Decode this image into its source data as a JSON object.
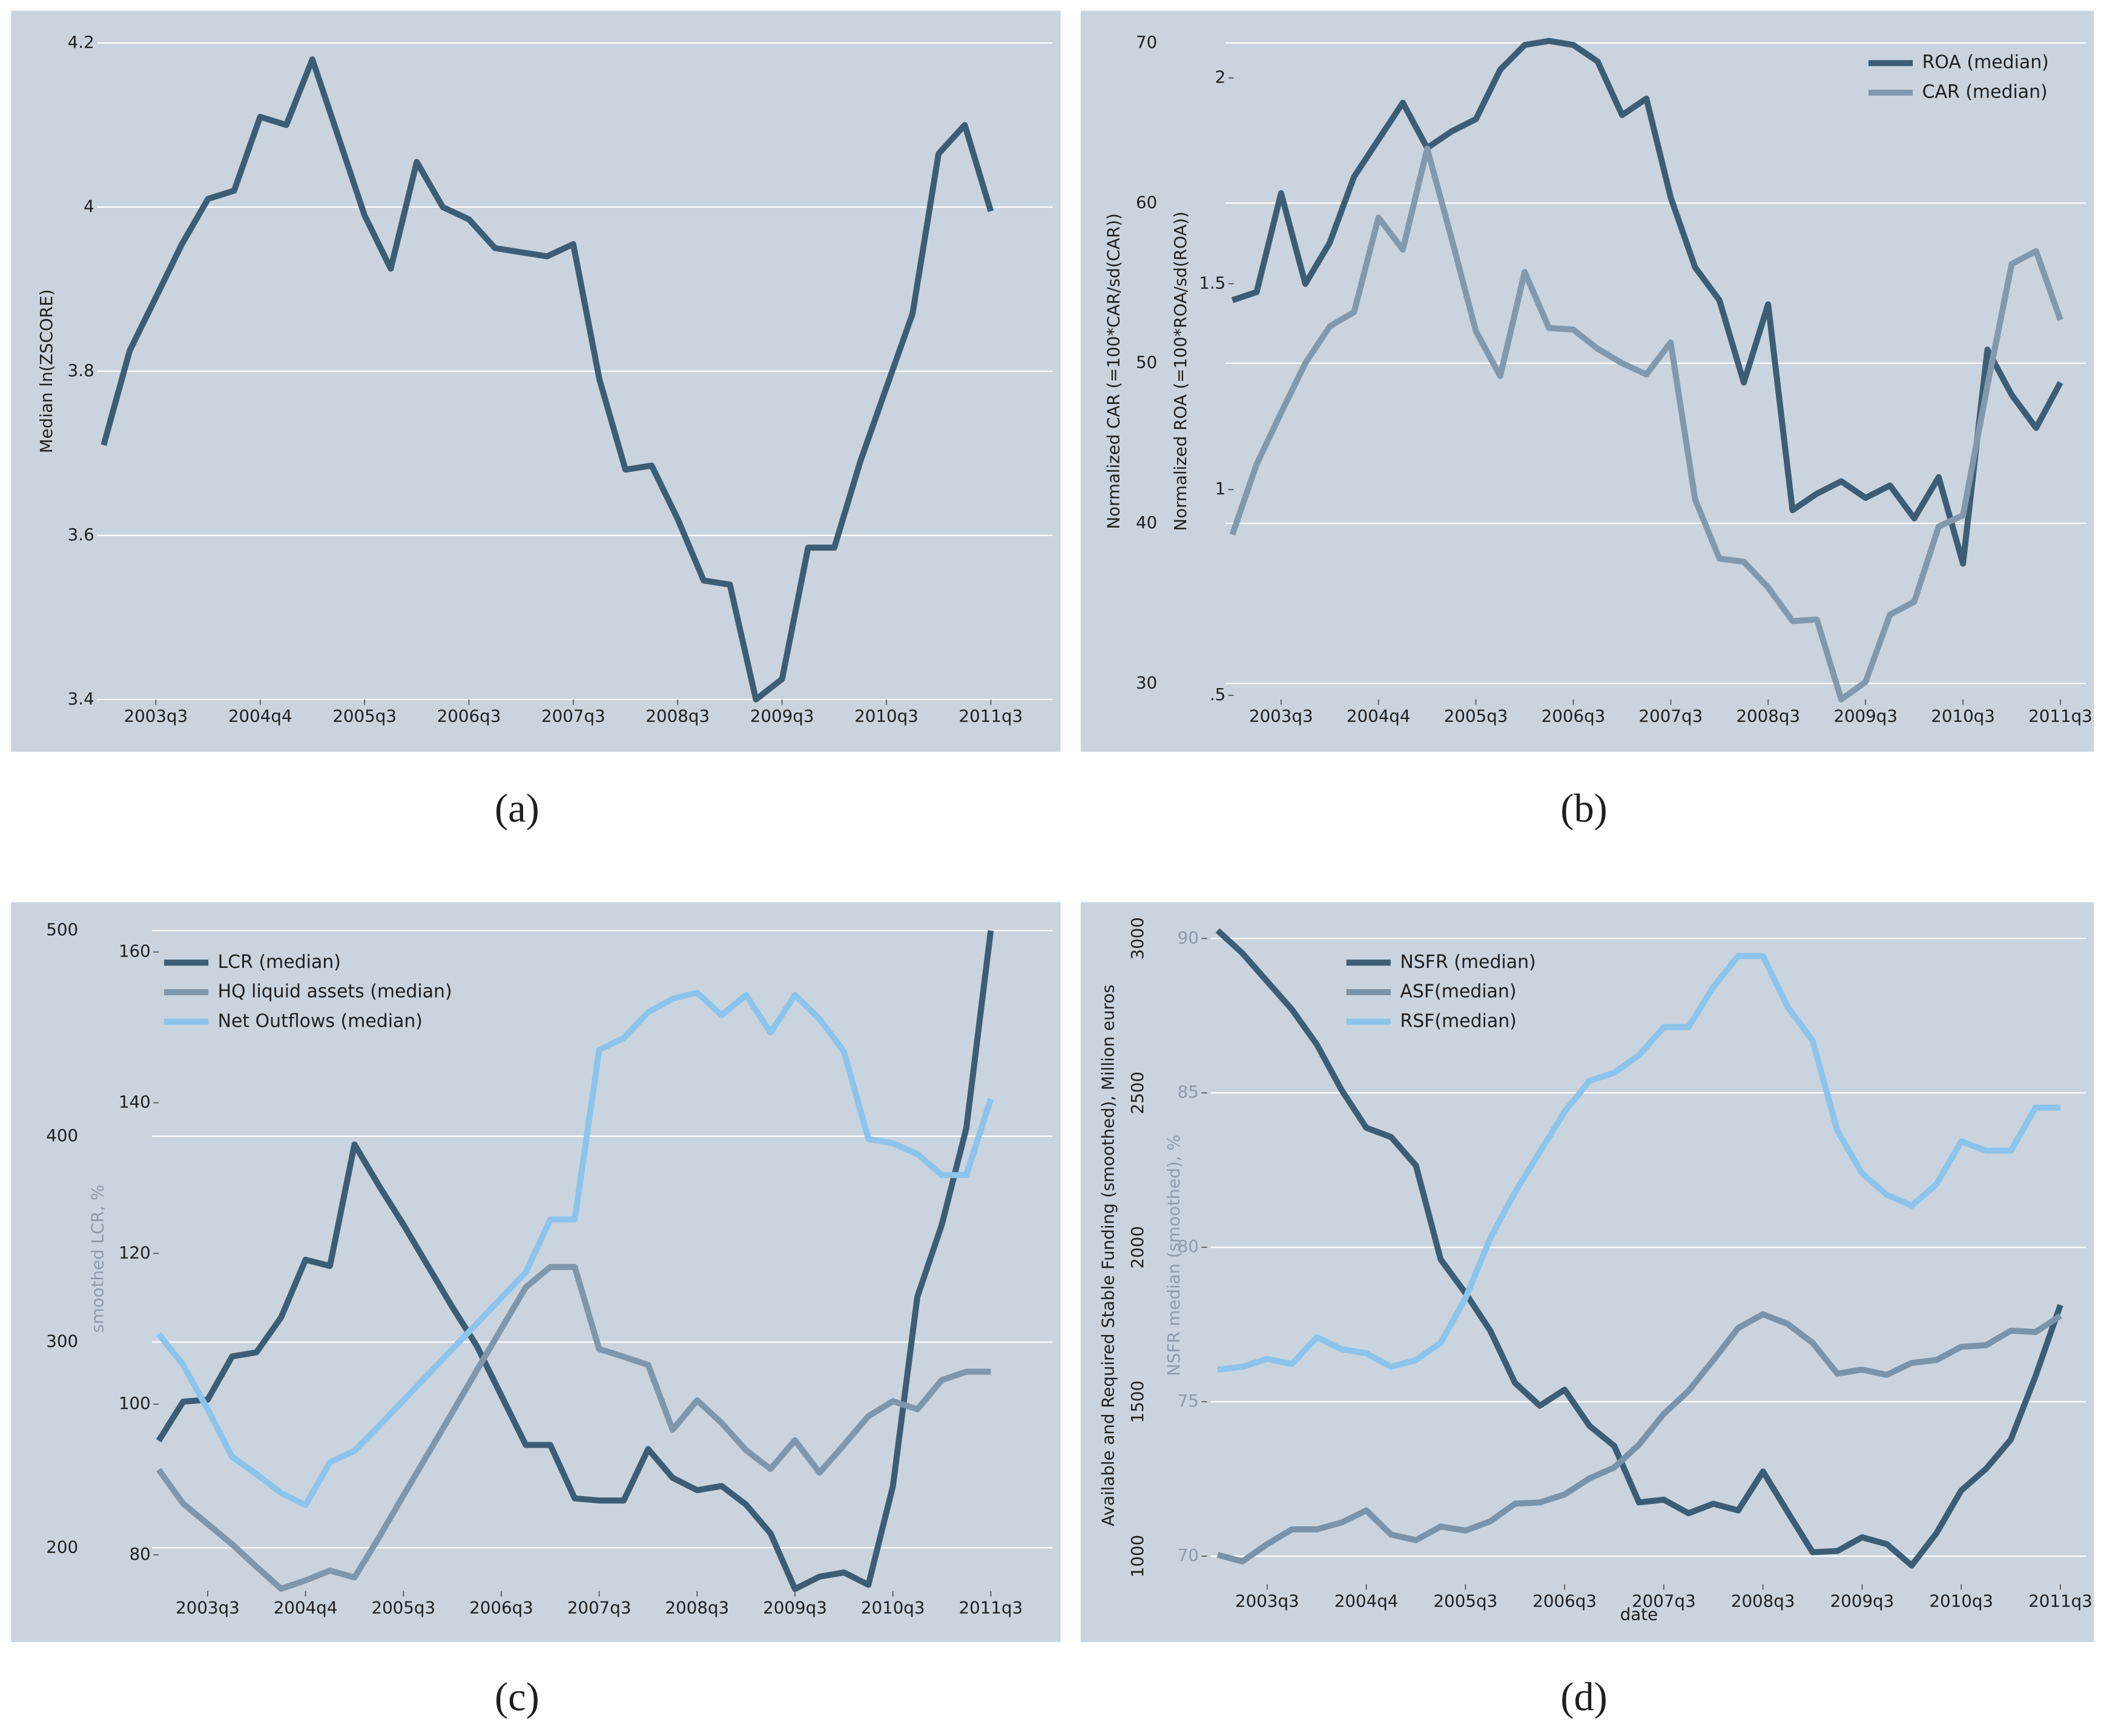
{
  "chart_data": [
    {
      "type": "line",
      "caption": "(a)",
      "ylabel": "Median ln(ZSCORE)",
      "categories": [
        null,
        null,
        "2003q3",
        null,
        null,
        null,
        "2004q4",
        null,
        null,
        null,
        "2005q3",
        null,
        null,
        null,
        "2006q3",
        null,
        null,
        null,
        "2007q3",
        null,
        null,
        null,
        "2008q3",
        null,
        null,
        null,
        "2009q3",
        null,
        null,
        null,
        "2010q3",
        null,
        null,
        null,
        "2011q3"
      ],
      "series": [
        {
          "color": "#3d5d74",
          "values": [
            3.71,
            3.825,
            3.89,
            3.955,
            4.01,
            4.02,
            4.11,
            4.1,
            4.18,
            4.085,
            3.99,
            3.925,
            4.055,
            4.0,
            3.985,
            3.95,
            3.945,
            3.94,
            3.955,
            3.79,
            3.68,
            3.685,
            3.62,
            3.545,
            3.54,
            3.4,
            3.425,
            3.585,
            3.585,
            3.69,
            3.78,
            3.87,
            4.065,
            4.1,
            3.995
          ]
        }
      ],
      "ylim": [
        3.4,
        4.2
      ],
      "yticks": [
        3.4,
        3.6,
        3.8,
        4,
        4.2
      ],
      "grid": true
    },
    {
      "type": "line",
      "caption": "(b)",
      "ylabel": "Normalized CAR (=100*CAR/sd(CAR))",
      "y2label": "Normalized ROA (=100*ROA/sd(ROA))",
      "categories": [
        null,
        null,
        "2003q3",
        null,
        null,
        null,
        "2004q4",
        null,
        null,
        null,
        "2005q3",
        null,
        null,
        null,
        "2006q3",
        null,
        null,
        null,
        "2007q3",
        null,
        null,
        null,
        "2008q3",
        null,
        null,
        null,
        "2009q3",
        null,
        null,
        null,
        "2010q3",
        null,
        null,
        null,
        "2011q3"
      ],
      "series": [
        {
          "name": "ROA (median)",
          "color": "#3d5d74",
          "axis": "y2",
          "values": [
            1.46,
            1.48,
            1.72,
            1.5,
            1.6,
            1.76,
            1.85,
            1.94,
            1.83,
            1.87,
            1.9,
            2.02,
            2.08,
            2.09,
            2.08,
            2.04,
            1.91,
            1.95,
            1.71,
            1.54,
            1.46,
            1.26,
            1.45,
            0.95,
            0.99,
            1.02,
            0.98,
            1.01,
            0.93,
            1.03,
            0.82,
            1.34,
            1.23,
            1.15,
            1.26
          ]
        },
        {
          "name": "CAR (median)",
          "color": "#8299ad",
          "values": [
            39.3,
            43.7,
            46.9,
            50.0,
            52.3,
            53.2,
            59.1,
            57.1,
            63.4,
            57.8,
            52.0,
            49.2,
            55.7,
            52.2,
            52.1,
            50.9,
            50.0,
            49.3,
            51.3,
            41.5,
            37.8,
            37.6,
            36.0,
            33.9,
            34.0,
            29.0,
            30.1,
            34.3,
            35.1,
            39.8,
            40.5,
            48.6,
            56.2,
            57.0,
            52.7
          ]
        }
      ],
      "ylim": [
        29,
        70
      ],
      "yticks": [
        30,
        40,
        50,
        60,
        70
      ],
      "y2lim": [
        0.49,
        2.085
      ],
      "y2ticks": [
        {
          "value": 0.5,
          "label": ".5"
        },
        1,
        1.5,
        2
      ],
      "grid": true,
      "legend": "upper right"
    },
    {
      "type": "line",
      "caption": "(c)",
      "ylabel": "smoothed LCR, %",
      "categories": [
        null,
        null,
        "2003q3",
        null,
        null,
        null,
        "2004q4",
        null,
        null,
        null,
        "2005q3",
        null,
        null,
        null,
        "2006q3",
        null,
        null,
        null,
        "2007q3",
        null,
        null,
        null,
        "2008q3",
        null,
        null,
        null,
        "2009q3",
        null,
        null,
        null,
        "2010q3",
        null,
        null,
        null,
        "2011q3"
      ],
      "series": [
        {
          "name": "LCR (median)",
          "color": "#3d5d74",
          "values": [
            252,
            271,
            272,
            293,
            295,
            312,
            340,
            337,
            396,
            376,
            357,
            337,
            317,
            298,
            274,
            250,
            250,
            224,
            223,
            223,
            248,
            234,
            228,
            230,
            221,
            207,
            180,
            186,
            188,
            182,
            230,
            322,
            357,
            404,
            500
          ]
        },
        {
          "name": "HQ liquid assets (median)",
          "color": "#7f96ab",
          "axis": "y2",
          "values": [
            91.3,
            86.8,
            84.1,
            81.4,
            78.4,
            75.5,
            76.6,
            77.9,
            77.0,
            82.3,
            87.9,
            93.4,
            98.9,
            104.5,
            110.0,
            115.5,
            118.2,
            118.2,
            107.3,
            106.3,
            105.2,
            96.6,
            100.5,
            97.5,
            93.9,
            91.4,
            95.2,
            90.9,
            94.6,
            98.4,
            100.4,
            99.3,
            103.2,
            104.3,
            104.3
          ]
        },
        {
          "name": "Net Outflows (median)",
          "color": "#8cc4ec",
          "axis": "y2",
          "values": [
            109.3,
            105.2,
            99.3,
            93.0,
            90.7,
            88.2,
            86.6,
            92.3,
            93.8,
            97.1,
            100.5,
            103.9,
            107.3,
            110.7,
            114.1,
            117.5,
            124.5,
            124.5,
            147.0,
            148.6,
            152.0,
            153.8,
            154.6,
            151.6,
            154.3,
            149.3,
            154.3,
            151.1,
            146.8,
            135.2,
            134.6,
            133.2,
            130.4,
            130.4,
            140.5
          ]
        }
      ],
      "ylim": [
        179,
        502
      ],
      "yticks": [
        200,
        300,
        400,
        500
      ],
      "y2lim": [
        75.2,
        163.4
      ],
      "y2ticks": [
        80,
        100,
        120,
        140,
        160
      ],
      "grid": true,
      "legend": "upper left"
    },
    {
      "type": "line",
      "caption": "(d)",
      "ylabel": "Available and Required Stable Funding (smoothed), Million euros",
      "y2label": "NSFR median (smoothed), %",
      "xlabel": "date",
      "categories": [
        null,
        null,
        "2003q3",
        null,
        null,
        null,
        "2004q4",
        null,
        null,
        null,
        "2005q3",
        null,
        null,
        null,
        "2006q3",
        null,
        null,
        null,
        "2007q3",
        null,
        null,
        null,
        "2008q3",
        null,
        null,
        null,
        "2009q3",
        null,
        null,
        null,
        "2010q3",
        null,
        null,
        null,
        "2011q3"
      ],
      "series": [
        {
          "name": "NSFR (median)",
          "color": "#3d5d74",
          "axis": "y2",
          "values": [
            90.26,
            89.52,
            88.61,
            87.7,
            86.57,
            85.09,
            83.87,
            83.57,
            82.65,
            79.61,
            78.52,
            77.3,
            75.61,
            74.87,
            75.39,
            74.22,
            73.57,
            71.74,
            71.83,
            71.39,
            71.7,
            71.48,
            72.74,
            71.43,
            70.13,
            70.17,
            70.61,
            70.39,
            69.7,
            70.74,
            72.13,
            72.83,
            73.78,
            75.83,
            78.13
          ]
        },
        {
          "name": "ASF(median)",
          "color": "#7a93a8",
          "values": [
            1004,
            983,
            1039,
            1087,
            1087,
            1109,
            1148,
            1070,
            1052,
            1096,
            1083,
            1113,
            1170,
            1174,
            1200,
            1252,
            1287,
            1361,
            1461,
            1535,
            1635,
            1739,
            1783,
            1752,
            1691,
            1591,
            1604,
            1587,
            1626,
            1635,
            1678,
            1683,
            1730,
            1726,
            1778
          ]
        },
        {
          "name": "RSF(median)",
          "color": "#8cc4ec",
          "values": [
            1604,
            1613,
            1639,
            1622,
            1709,
            1670,
            1657,
            1613,
            1635,
            1691,
            1835,
            2030,
            2178,
            2309,
            2439,
            2539,
            2565,
            2622,
            2713,
            2713,
            2843,
            2943,
            2943,
            2778,
            2670,
            2378,
            2239,
            2170,
            2135,
            2204,
            2343,
            2313,
            2313,
            2452,
            2452
          ]
        }
      ],
      "ylim": [
        909,
        3039
      ],
      "yticks": [
        1000,
        1500,
        2000,
        2500,
        3000
      ],
      "y2lim": [
        69.09,
        90.39
      ],
      "y2ticks": [
        70,
        75,
        80,
        85,
        90
      ],
      "grid": true,
      "legend": "upper left"
    }
  ]
}
